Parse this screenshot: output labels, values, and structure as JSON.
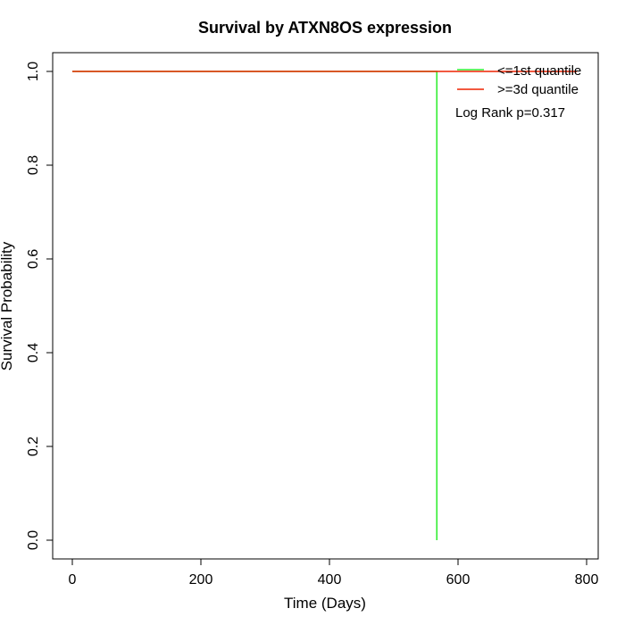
{
  "chart_data": {
    "type": "line",
    "title": "Survival by ATXN8OS expression",
    "xlabel": "Time (Days)",
    "ylabel": "Survival Probability",
    "xlim": [
      0,
      800
    ],
    "ylim": [
      0,
      1
    ],
    "x_ticks": [
      0,
      200,
      400,
      600,
      800
    ],
    "y_ticks": [
      0.0,
      0.2,
      0.4,
      0.6,
      0.8,
      1.0
    ],
    "x_tick_labels": [
      "0",
      "200",
      "400",
      "600",
      "800"
    ],
    "y_tick_labels": [
      "0.0",
      "0.2",
      "0.4",
      "0.6",
      "0.8",
      "1.0"
    ],
    "grid": false,
    "legend_position": "top-right",
    "series": [
      {
        "name": "<=1st quantile",
        "color": "#33ee33",
        "step": true,
        "x": [
          0,
          567,
          567
        ],
        "y": [
          1.0,
          1.0,
          0.0
        ]
      },
      {
        "name": ">=3d quantile",
        "color": "#ee2200",
        "step": true,
        "x": [
          0,
          785
        ],
        "y": [
          1.0,
          1.0
        ]
      }
    ],
    "annotation": "Log Rank p=0.317"
  }
}
